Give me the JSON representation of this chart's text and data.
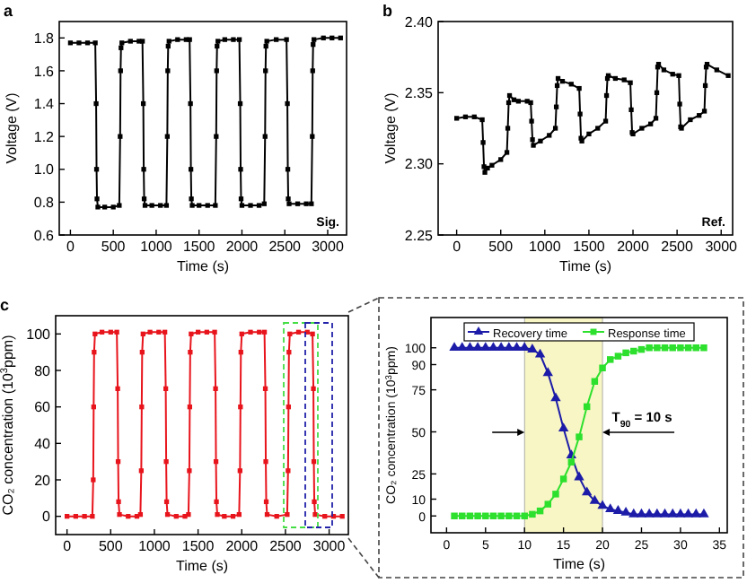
{
  "chart_data": [
    {
      "type": "line",
      "title": "a",
      "xlabel": "Time (s)",
      "ylabel": "Voltage (V)",
      "annotations": [
        "Sig."
      ],
      "marker": "square",
      "xlim": [
        -130,
        3220
      ],
      "xticks": [
        0,
        500,
        1000,
        1500,
        2000,
        2500,
        3000
      ],
      "ylim": [
        0.6,
        1.9
      ],
      "yticks": [
        {
          "value": 0.6,
          "label": "0.6"
        },
        {
          "value": 0.8,
          "label": "0.8"
        },
        {
          "value": 1.0,
          "label": "1.0"
        },
        {
          "value": 1.2,
          "label": "1.2"
        },
        {
          "value": 1.4,
          "label": "1.4"
        },
        {
          "value": 1.6,
          "label": "1.6"
        },
        {
          "value": 1.8,
          "label": "1.8"
        }
      ],
      "series": [
        {
          "color": "#000000",
          "x": [
            0,
            100,
            200,
            290,
            300,
            305,
            310,
            320,
            400,
            500,
            570,
            580,
            585,
            590,
            600,
            700,
            800,
            840,
            850,
            855,
            860,
            870,
            950,
            1050,
            1120,
            1130,
            1135,
            1140,
            1150,
            1250,
            1350,
            1390,
            1400,
            1405,
            1410,
            1420,
            1500,
            1600,
            1690,
            1700,
            1705,
            1710,
            1720,
            1800,
            1900,
            1970,
            1980,
            1985,
            1990,
            2000,
            2100,
            2200,
            2260,
            2270,
            2275,
            2280,
            2290,
            2400,
            2520,
            2530,
            2535,
            2540,
            2550,
            2650,
            2750,
            2810,
            2820,
            2825,
            2830,
            2840,
            2950,
            3050,
            3150
          ],
          "values": [
            1.77,
            1.77,
            1.77,
            1.77,
            1.4,
            1.0,
            0.82,
            0.77,
            0.77,
            0.77,
            0.78,
            1.2,
            1.6,
            1.74,
            1.77,
            1.78,
            1.78,
            1.78,
            1.4,
            1.0,
            0.82,
            0.78,
            0.78,
            0.78,
            0.78,
            1.2,
            1.6,
            1.75,
            1.78,
            1.79,
            1.79,
            1.79,
            1.4,
            1.0,
            0.82,
            0.78,
            0.78,
            0.78,
            0.78,
            1.2,
            1.6,
            1.75,
            1.78,
            1.79,
            1.79,
            1.79,
            1.4,
            1.0,
            0.82,
            0.78,
            0.78,
            0.78,
            0.79,
            1.2,
            1.6,
            1.75,
            1.78,
            1.79,
            1.79,
            1.4,
            1.0,
            0.82,
            0.79,
            0.79,
            0.79,
            0.79,
            1.2,
            1.6,
            1.76,
            1.79,
            1.8,
            1.8,
            1.8
          ]
        }
      ]
    },
    {
      "type": "line",
      "title": "b",
      "xlabel": "Time (s)",
      "ylabel": "Voltage (V)",
      "annotations": [
        "Ref."
      ],
      "marker": "square",
      "xlim": [
        -210,
        3130
      ],
      "xticks": [
        0,
        500,
        1000,
        1500,
        2000,
        2500,
        3000
      ],
      "ylim": [
        2.25,
        2.4
      ],
      "yticks": [
        2.25,
        {
          "value": 2.3,
          "label": "2.30"
        },
        2.35,
        {
          "value": 2.4,
          "label": "2.40"
        }
      ],
      "series": [
        {
          "color": "#000000",
          "x": [
            0,
            100,
            200,
            290,
            300,
            310,
            320,
            350,
            400,
            500,
            570,
            580,
            590,
            600,
            650,
            700,
            800,
            840,
            850,
            860,
            870,
            950,
            1050,
            1120,
            1130,
            1140,
            1150,
            1200,
            1300,
            1390,
            1400,
            1410,
            1420,
            1500,
            1600,
            1690,
            1700,
            1710,
            1720,
            1800,
            1900,
            1970,
            1980,
            1990,
            2000,
            2100,
            2200,
            2260,
            2270,
            2280,
            2290,
            2350,
            2450,
            2520,
            2530,
            2540,
            2550,
            2650,
            2750,
            2810,
            2820,
            2830,
            2840,
            2950,
            3080
          ],
          "values": [
            2.332,
            2.333,
            2.333,
            2.331,
            2.315,
            2.298,
            2.294,
            2.297,
            2.299,
            2.303,
            2.308,
            2.325,
            2.343,
            2.348,
            2.345,
            2.344,
            2.344,
            2.343,
            2.33,
            2.317,
            2.313,
            2.316,
            2.32,
            2.325,
            2.34,
            2.355,
            2.36,
            2.358,
            2.356,
            2.353,
            2.335,
            2.318,
            2.316,
            2.321,
            2.325,
            2.33,
            2.348,
            2.36,
            2.362,
            2.36,
            2.359,
            2.357,
            2.338,
            2.322,
            2.321,
            2.325,
            2.328,
            2.332,
            2.35,
            2.368,
            2.37,
            2.366,
            2.363,
            2.362,
            2.342,
            2.326,
            2.325,
            2.331,
            2.334,
            2.337,
            2.355,
            2.368,
            2.37,
            2.366,
            2.362
          ]
        }
      ]
    },
    {
      "type": "line",
      "title": "c",
      "xlabel": "Time (s)",
      "ylabel": "CO₂ concentration (10$^{3}$ppm)",
      "marker": "square",
      "xlim": [
        -130,
        3220
      ],
      "xticks": [
        0,
        500,
        1000,
        1500,
        2000,
        2500,
        3000
      ],
      "ylim": [
        -10,
        110
      ],
      "yticks": [
        0,
        20,
        40,
        60,
        80,
        100
      ],
      "series": [
        {
          "color": "#e8141c",
          "x": [
            0,
            100,
            200,
            290,
            300,
            305,
            310,
            320,
            400,
            500,
            570,
            580,
            585,
            590,
            600,
            700,
            800,
            840,
            850,
            855,
            860,
            870,
            950,
            1050,
            1120,
            1130,
            1135,
            1140,
            1150,
            1250,
            1350,
            1390,
            1400,
            1405,
            1410,
            1420,
            1500,
            1600,
            1690,
            1700,
            1705,
            1710,
            1720,
            1800,
            1900,
            1970,
            1980,
            1985,
            1990,
            2000,
            2100,
            2200,
            2260,
            2270,
            2275,
            2280,
            2290,
            2400,
            2520,
            2530,
            2535,
            2540,
            2550,
            2650,
            2750,
            2810,
            2820,
            2825,
            2830,
            2840,
            2950,
            3050,
            3150
          ],
          "values": [
            0,
            0,
            0,
            0,
            20,
            60,
            90,
            100,
            101,
            101,
            101,
            70,
            30,
            8,
            1,
            0,
            0,
            1,
            25,
            60,
            90,
            100,
            101,
            101,
            101,
            70,
            30,
            8,
            1,
            0,
            0,
            1,
            25,
            60,
            90,
            100,
            101,
            101,
            101,
            70,
            30,
            8,
            1,
            0,
            0,
            1,
            25,
            60,
            90,
            100,
            101,
            101,
            101,
            70,
            30,
            8,
            1,
            0,
            1,
            25,
            60,
            90,
            100,
            101,
            101,
            100,
            70,
            30,
            8,
            1,
            0,
            0,
            0
          ]
        }
      ]
    },
    {
      "type": "line",
      "xlabel": "Time (s)",
      "ylabel": "CO₂ concentration (10$^{3}$ppm)",
      "legend": "top",
      "xlim": [
        -2,
        36
      ],
      "xticks": [
        0,
        5,
        10,
        15,
        20,
        25,
        30,
        35
      ],
      "ylim": [
        -10,
        118
      ],
      "yticks": [
        0,
        10,
        25,
        50,
        75,
        90,
        100
      ],
      "annotations": [
        "T$_{90}$ = 10 s"
      ],
      "bands": [
        {
          "axis": "x",
          "from": 10,
          "to": 20,
          "color": "#f8f6c4"
        }
      ],
      "series": [
        {
          "name": "Recovery time",
          "color": "#1c1ca8",
          "marker": "triangle",
          "x": [
            1,
            2,
            3,
            4,
            5,
            6,
            7,
            8,
            9,
            10,
            11,
            12,
            13,
            14,
            15,
            16,
            17,
            18,
            19,
            20,
            21,
            22,
            23,
            24,
            25,
            26,
            27,
            28,
            29,
            30,
            31,
            32,
            33
          ],
          "values": [
            100,
            100,
            100,
            100,
            100,
            100,
            100,
            100,
            100,
            100,
            99,
            96,
            85,
            70,
            52,
            36,
            23,
            14,
            9,
            6,
            4,
            3,
            2,
            1,
            1,
            1,
            1,
            1,
            1,
            1,
            1,
            1,
            1
          ]
        },
        {
          "name": "Response time",
          "color": "#2ee02e",
          "marker": "square",
          "x": [
            1,
            2,
            3,
            4,
            5,
            6,
            7,
            8,
            9,
            10,
            11,
            12,
            13,
            14,
            15,
            16,
            17,
            18,
            19,
            20,
            21,
            22,
            23,
            24,
            25,
            26,
            27,
            28,
            29,
            30,
            31,
            32,
            33
          ],
          "values": [
            0,
            0,
            0,
            0,
            0,
            0,
            0,
            0,
            0,
            0,
            1,
            3,
            7,
            13,
            22,
            32,
            47,
            65,
            80,
            88,
            93,
            95,
            97,
            98,
            99,
            100,
            100,
            100,
            100,
            100,
            100,
            100,
            100
          ]
        }
      ]
    }
  ]
}
